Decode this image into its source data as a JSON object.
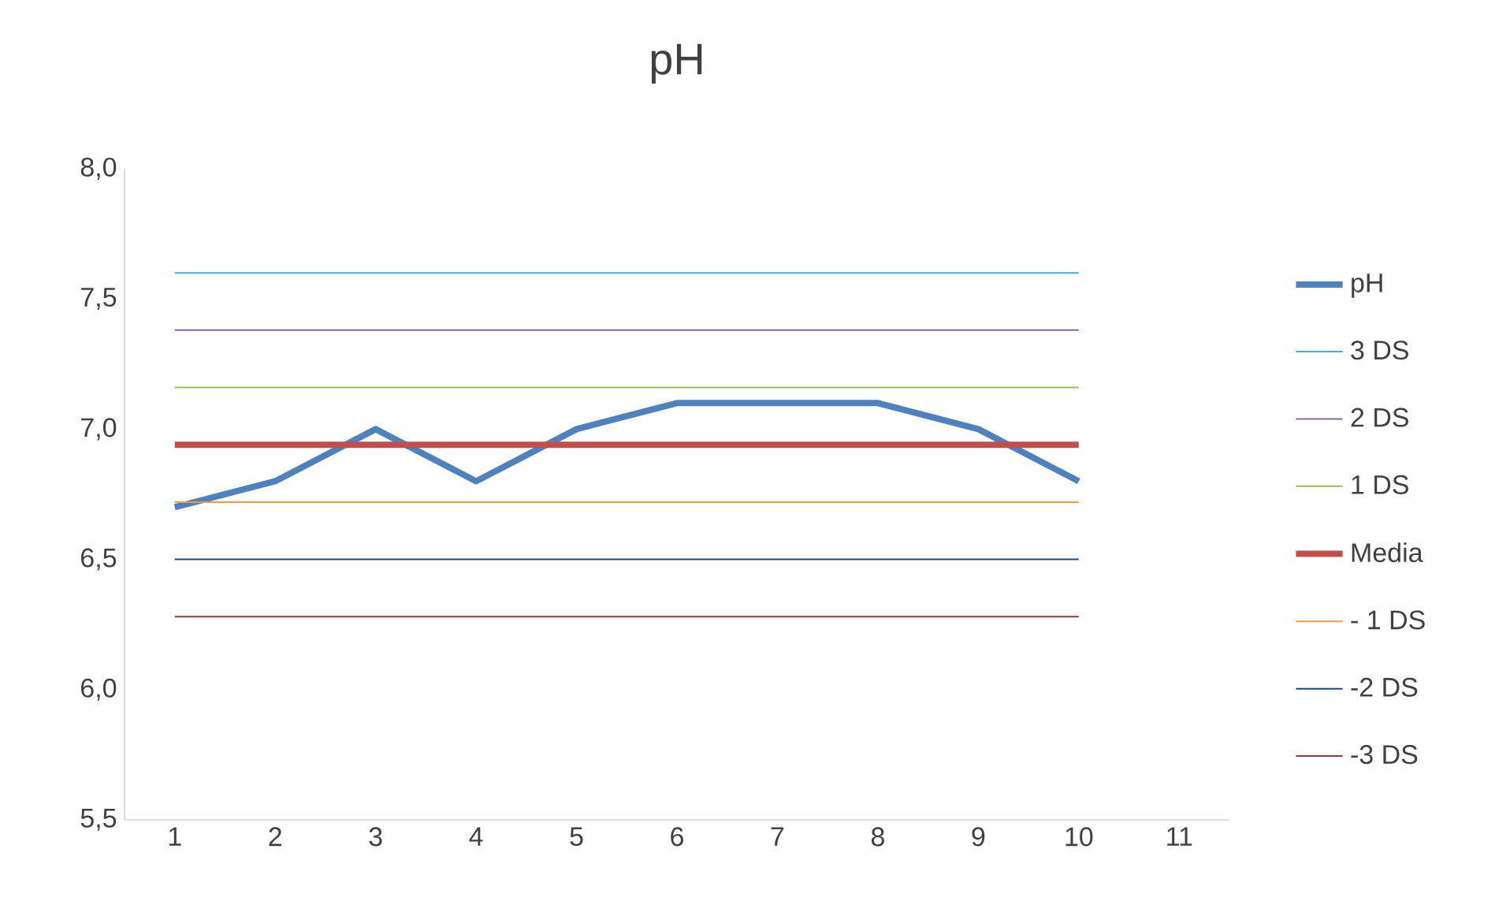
{
  "chart_data": {
    "type": "line",
    "title": "pH",
    "categories": [
      "1",
      "2",
      "3",
      "4",
      "5",
      "6",
      "7",
      "8",
      "9",
      "10",
      "11"
    ],
    "series": [
      {
        "name": "pH",
        "color": "#4f81bd",
        "values": [
          6.7,
          6.8,
          7.0,
          6.8,
          7.0,
          7.1,
          7.1,
          7.1,
          7.0,
          6.8,
          null
        ]
      },
      {
        "name": "3 DS",
        "color": "#4bacc6",
        "values": [
          7.6,
          7.6,
          7.6,
          7.6,
          7.6,
          7.6,
          7.6,
          7.6,
          7.6,
          7.6,
          null
        ]
      },
      {
        "name": "2 DS",
        "color": "#8064a2",
        "values": [
          7.38,
          7.38,
          7.38,
          7.38,
          7.38,
          7.38,
          7.38,
          7.38,
          7.38,
          7.38,
          null
        ]
      },
      {
        "name": "1 DS",
        "color": "#9bbb59",
        "values": [
          7.16,
          7.16,
          7.16,
          7.16,
          7.16,
          7.16,
          7.16,
          7.16,
          7.16,
          7.16,
          null
        ]
      },
      {
        "name": "Media",
        "color": "#c0504d",
        "values": [
          6.94,
          6.94,
          6.94,
          6.94,
          6.94,
          6.94,
          6.94,
          6.94,
          6.94,
          6.94,
          null
        ]
      },
      {
        "name": "- 1 DS",
        "color": "#f79646",
        "values": [
          6.72,
          6.72,
          6.72,
          6.72,
          6.72,
          6.72,
          6.72,
          6.72,
          6.72,
          6.72,
          null
        ]
      },
      {
        "name": "-2 DS",
        "color": "#1f497d",
        "values": [
          6.5,
          6.5,
          6.5,
          6.5,
          6.5,
          6.5,
          6.5,
          6.5,
          6.5,
          6.5,
          null
        ]
      },
      {
        "name": "-3 DS",
        "color": "#7f3f3f",
        "values": [
          6.28,
          6.28,
          6.28,
          6.28,
          6.28,
          6.28,
          6.28,
          6.28,
          6.28,
          6.28,
          null
        ]
      }
    ],
    "ylim": [
      5.5,
      8.0
    ],
    "yticks": [
      {
        "value": 5.5,
        "label": "5,5"
      },
      {
        "value": 6.0,
        "label": "6,0"
      },
      {
        "value": 6.5,
        "label": "6,5"
      },
      {
        "value": 7.0,
        "label": "7,0"
      },
      {
        "value": 7.5,
        "label": "7,5"
      },
      {
        "value": 8.0,
        "label": "8,0"
      }
    ],
    "legend": "right"
  }
}
